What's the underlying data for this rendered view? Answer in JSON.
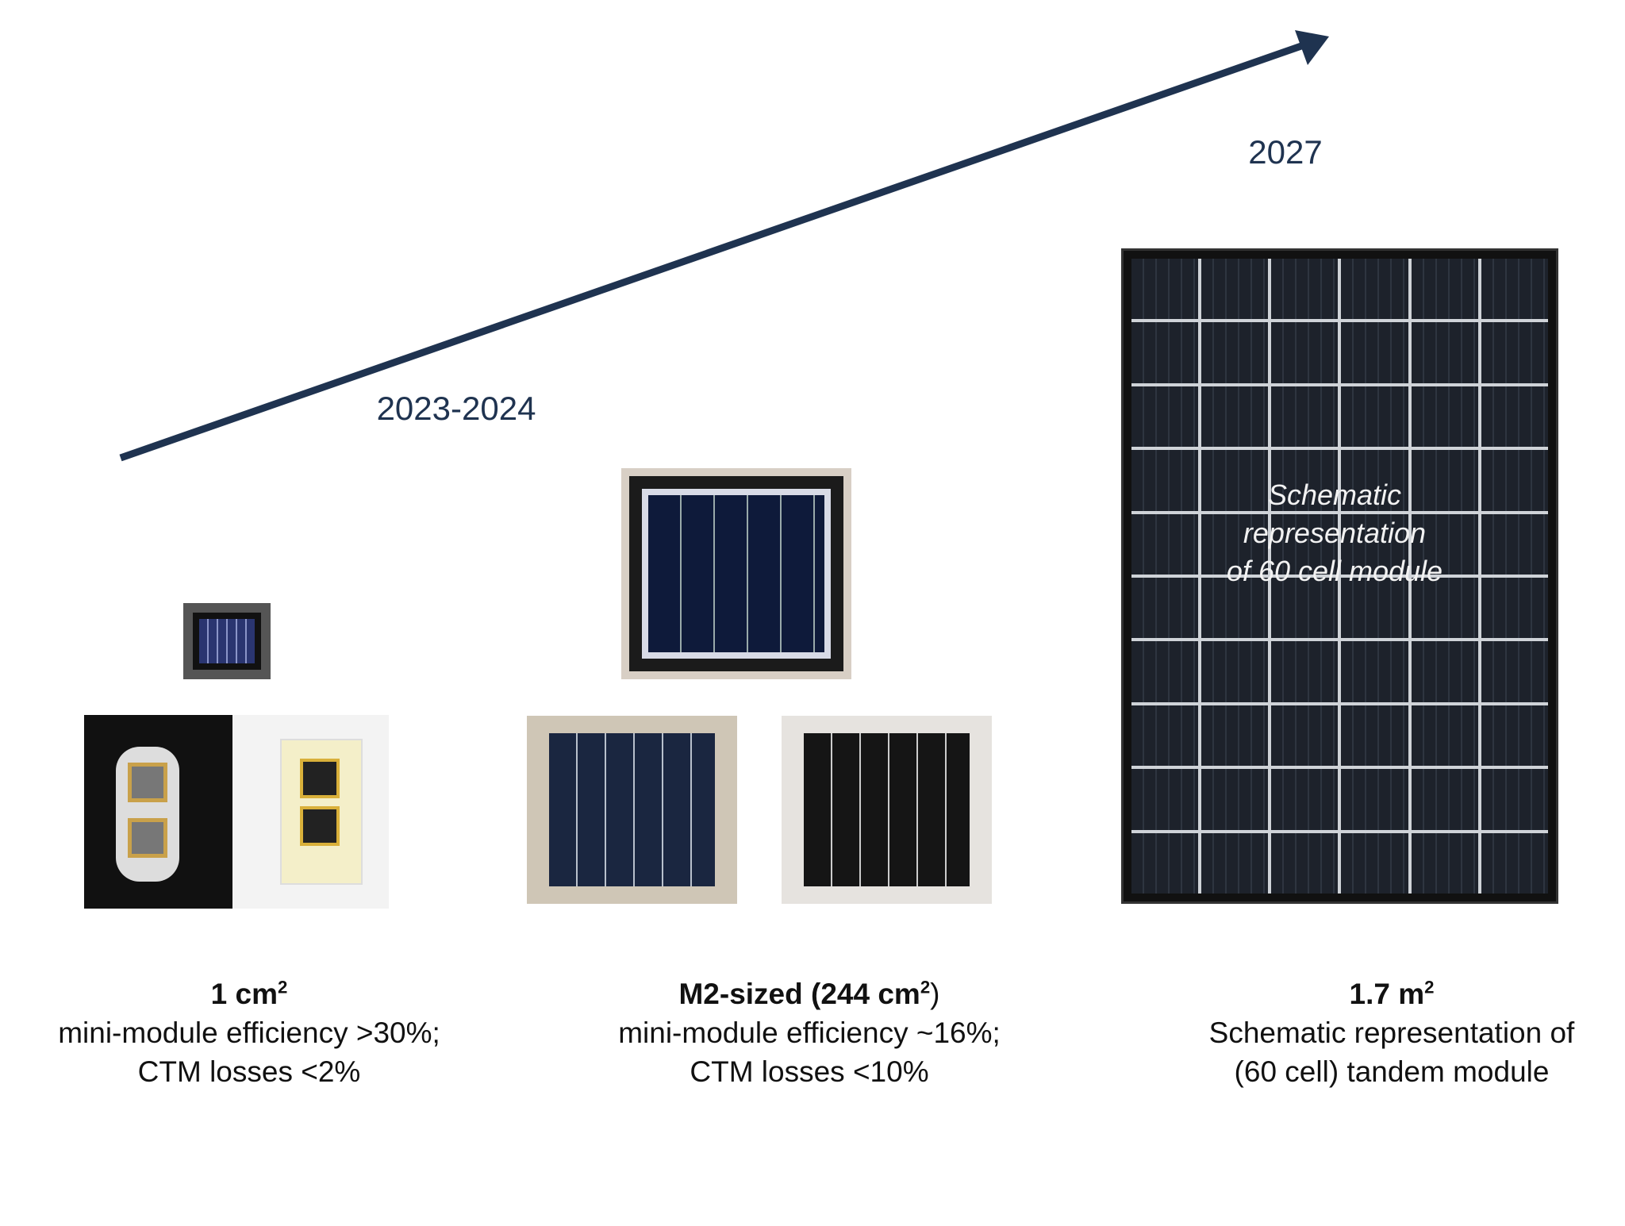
{
  "timeline": {
    "start_label": "2023-2024",
    "end_label": "2027"
  },
  "panel_overlay": {
    "lines": [
      "Schematic",
      "representation",
      "of 60 cell module"
    ]
  },
  "stages": [
    {
      "title": "1 cm",
      "title_sup": "2",
      "title_suffix": "",
      "line1": "mini-module efficiency >30%;",
      "line2": "CTM losses <2%"
    },
    {
      "title": "M2-sized (244 cm",
      "title_sup": "2",
      "title_suffix": ")",
      "line1": "mini-module efficiency ~16%;",
      "line2": "CTM losses <10%"
    },
    {
      "title": "1.7 m",
      "title_sup": "2",
      "title_suffix": "",
      "line1": "Schematic representation of",
      "line2": "(60 cell) tandem module"
    }
  ],
  "colors": {
    "arrow": "#1f3350",
    "panel": "#15171c",
    "cell": "#1f2733"
  }
}
